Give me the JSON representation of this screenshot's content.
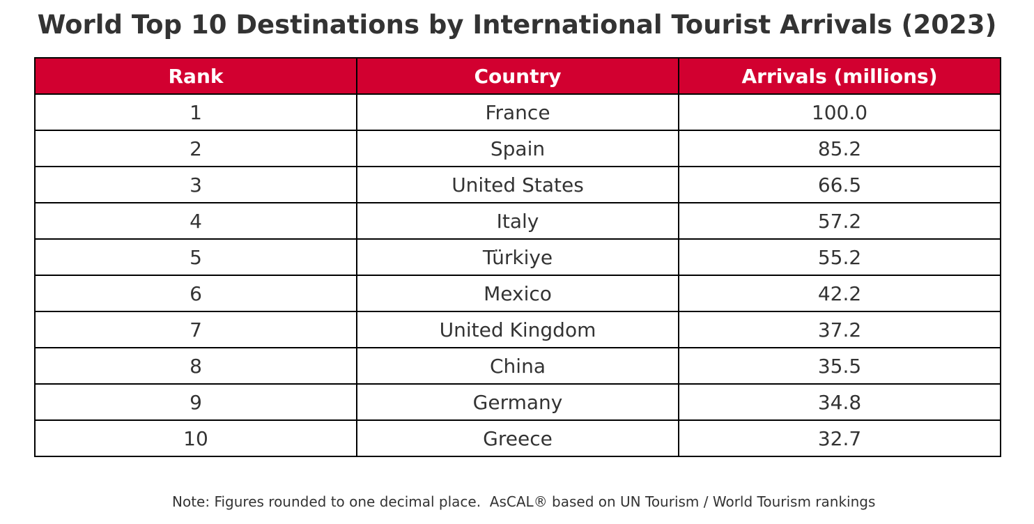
{
  "chart_data": {
    "type": "table",
    "title": "World Top 10 Destinations by International Tourist Arrivals (2023)",
    "columns": [
      "Rank",
      "Country",
      "Arrivals (millions)"
    ],
    "rows": [
      [
        "1",
        "France",
        "100.0"
      ],
      [
        "2",
        "Spain",
        "85.2"
      ],
      [
        "3",
        "United States",
        "66.5"
      ],
      [
        "4",
        "Italy",
        "57.2"
      ],
      [
        "5",
        "Türkiye",
        "55.2"
      ],
      [
        "6",
        "Mexico",
        "42.2"
      ],
      [
        "7",
        "United Kingdom",
        "37.2"
      ],
      [
        "8",
        "China",
        "35.5"
      ],
      [
        "9",
        "Germany",
        "34.8"
      ],
      [
        "10",
        "Greece",
        "32.7"
      ]
    ],
    "note": "Note: Figures rounded to one decimal place.  AsCAL® based on UN Tourism / World Tourism rankings",
    "colors": {
      "header_background": "#d20030",
      "header_text": "#ffffff",
      "cell_text": "#333333",
      "border": "#000000"
    }
  }
}
